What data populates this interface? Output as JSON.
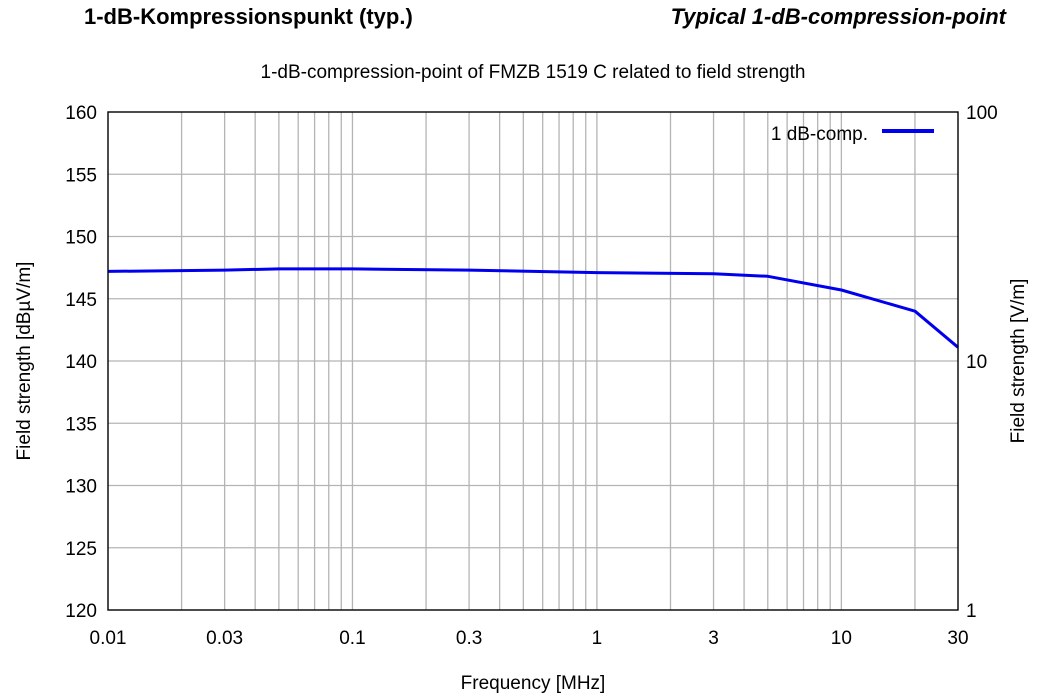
{
  "header": {
    "title_de": "1-dB-Kompressionspunkt (typ.)",
    "title_en": "Typical 1-dB-compression-point"
  },
  "chart_data": {
    "type": "line",
    "title": "1-dB-compression-point of FMZB 1519 C related to field strength",
    "xlabel": "Frequency [MHz]",
    "ylabel": "Field strength [dBµV/m]",
    "y2label": "Field strength [V/m]",
    "x_scale": "log",
    "xlim": [
      0.01,
      30
    ],
    "ylim": [
      120,
      160
    ],
    "y2_scale": "log",
    "y2lim": [
      1,
      100
    ],
    "grid": true,
    "legend_position": "top-right",
    "x_ticks": [
      0.01,
      0.03,
      0.1,
      0.3,
      1,
      3,
      10,
      30
    ],
    "x_tick_labels": [
      "0.01",
      "0.03",
      "0.1",
      "0.3",
      "1",
      "3",
      "10",
      "30"
    ],
    "y_ticks": [
      120,
      125,
      130,
      135,
      140,
      145,
      150,
      155,
      160
    ],
    "y_tick_labels": [
      "120",
      "125",
      "130",
      "135",
      "140",
      "145",
      "150",
      "155",
      "160"
    ],
    "y2_ticks": [
      1,
      10,
      100
    ],
    "y2_tick_labels": [
      "1",
      "10",
      "100"
    ],
    "series": [
      {
        "name": "1 dB-comp.",
        "color": "#0000ee",
        "x": [
          0.01,
          0.03,
          0.05,
          0.1,
          0.3,
          1,
          3,
          5,
          10,
          20,
          30
        ],
        "y": [
          147.2,
          147.3,
          147.4,
          147.4,
          147.3,
          147.1,
          147.0,
          146.8,
          145.7,
          144.0,
          141.1
        ]
      }
    ]
  }
}
